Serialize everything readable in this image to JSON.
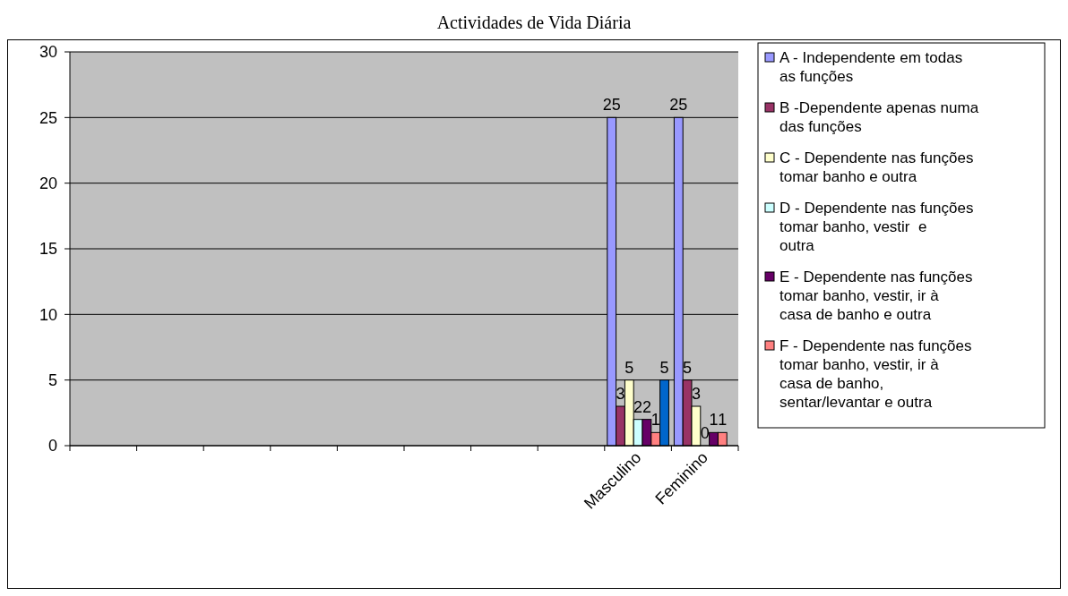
{
  "chart_data": {
    "type": "bar",
    "title": "Actividades de Vida Diária",
    "categories": [
      null,
      null,
      null,
      null,
      null,
      null,
      null,
      null,
      "Masculino",
      "Feminino"
    ],
    "series": [
      {
        "name": "A - Independente em todas as funções",
        "color": "#9999ff",
        "values": [
          null,
          null,
          null,
          null,
          null,
          null,
          null,
          null,
          25,
          25
        ]
      },
      {
        "name": "B -Dependente apenas numa das funções",
        "color": "#993366",
        "values": [
          null,
          null,
          null,
          null,
          null,
          null,
          null,
          null,
          3,
          5
        ]
      },
      {
        "name": "C - Dependente nas funções tomar banho e outra",
        "color": "#ffffcc",
        "values": [
          null,
          null,
          null,
          null,
          null,
          null,
          null,
          null,
          5,
          3
        ]
      },
      {
        "name": "D - Dependente nas funções  tomar banho, vestir  e outra",
        "color": "#ccffff",
        "values": [
          null,
          null,
          null,
          null,
          null,
          null,
          null,
          null,
          2,
          0
        ]
      },
      {
        "name": "E - Dependente nas funções tomar banho, vestir, ir à casa de banho e outra",
        "color": "#660066",
        "values": [
          null,
          null,
          null,
          null,
          null,
          null,
          null,
          null,
          2,
          1
        ]
      },
      {
        "name": "F - Dependente nas funções tomar banho, vestir, ir à casa de banho, sentar/levantar e outra",
        "color": "#ff8080",
        "values": [
          null,
          null,
          null,
          null,
          null,
          null,
          null,
          null,
          1,
          1
        ]
      },
      {
        "color": "#0066cc",
        "values": [
          null,
          null,
          null,
          null,
          null,
          null,
          null,
          null,
          5,
          null
        ]
      }
    ],
    "ylim": [
      0,
      30
    ],
    "yticks": [
      0,
      5,
      10,
      15,
      20,
      25,
      30
    ],
    "grid": "y",
    "legend": "right",
    "data_labels": true
  }
}
